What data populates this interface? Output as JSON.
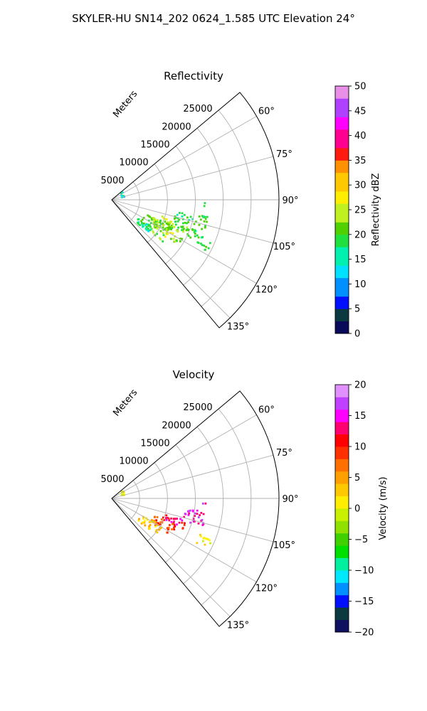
{
  "figure": {
    "suptitle": "SKYLER-HU  SN14_202  0624_1.585 UTC Elevation 24°"
  },
  "chart_data": [
    {
      "type": "polar-sector",
      "title": "Reflectivity",
      "range_label": "Meters",
      "r_ticks": [
        5000,
        10000,
        15000,
        20000,
        25000
      ],
      "r_tick_labels": [
        "5000",
        "10000",
        "15000",
        "20000",
        "25000"
      ],
      "theta_ticks": [
        60,
        75,
        90,
        105,
        120,
        135
      ],
      "theta_tick_labels": [
        "60°",
        "75°",
        "90°",
        "105°",
        "120°",
        "135°"
      ],
      "theta_range": [
        50,
        140
      ],
      "r_max": 30000,
      "grid": true,
      "colorbar": {
        "label": "Reflectivity dBZ",
        "vmin": 0,
        "vmax": 50,
        "ticks": [
          0,
          5,
          10,
          15,
          20,
          25,
          30,
          35,
          40,
          45,
          50
        ],
        "tick_labels": [
          "0",
          "5",
          "10",
          "15",
          "20",
          "25",
          "30",
          "35",
          "40",
          "45",
          "50"
        ]
      },
      "echo_regions": [
        {
          "theta": [
            100,
            116
          ],
          "r": [
            11500,
            17500
          ],
          "value": 19
        },
        {
          "theta": [
            108,
            125
          ],
          "r": [
            9000,
            14500
          ],
          "value": 23
        },
        {
          "theta": [
            113,
            130
          ],
          "r": [
            6500,
            12000
          ],
          "value": 21
        },
        {
          "theta": [
            112,
            119
          ],
          "r": [
            17000,
            19500
          ],
          "value": 18
        },
        {
          "theta": [
            92,
            95
          ],
          "r": [
            16000,
            17000
          ],
          "value": 22
        },
        {
          "theta": [
            124,
            132
          ],
          "r": [
            5500,
            9000
          ],
          "value": 17
        },
        {
          "theta": [
            55,
            78
          ],
          "r": [
            1800,
            2400
          ],
          "value": 14
        }
      ]
    },
    {
      "type": "polar-sector",
      "title": "Velocity",
      "range_label": "Meters",
      "r_ticks": [
        5000,
        10000,
        15000,
        20000,
        25000
      ],
      "r_tick_labels": [
        "5000",
        "10000",
        "15000",
        "20000",
        "25000"
      ],
      "theta_ticks": [
        60,
        75,
        90,
        105,
        120,
        135
      ],
      "theta_tick_labels": [
        "60°",
        "75°",
        "90°",
        "105°",
        "120°",
        "135°"
      ],
      "theta_range": [
        50,
        140
      ],
      "r_max": 30000,
      "grid": true,
      "colorbar": {
        "label": "Velocity (m/s)",
        "vmin": -20,
        "vmax": 20,
        "ticks": [
          -20,
          -15,
          -10,
          -5,
          0,
          5,
          10,
          15,
          20
        ],
        "tick_labels": [
          "−20",
          "−15",
          "−10",
          "−5",
          "0",
          "5",
          "10",
          "15",
          "20"
        ]
      },
      "echo_regions": [
        {
          "theta": [
            98,
            108
          ],
          "r": [
            13000,
            17500
          ],
          "value": 15
        },
        {
          "theta": [
            106,
            114
          ],
          "r": [
            9500,
            14000
          ],
          "value": 12
        },
        {
          "theta": [
            112,
            122
          ],
          "r": [
            8000,
            12500
          ],
          "value": 9
        },
        {
          "theta": [
            118,
            130
          ],
          "r": [
            6000,
            10500
          ],
          "value": 3
        },
        {
          "theta": [
            112,
            119
          ],
          "r": [
            17000,
            19500
          ],
          "value": 1
        },
        {
          "theta": [
            92,
            95
          ],
          "r": [
            16000,
            17000
          ],
          "value": 14
        },
        {
          "theta": [
            55,
            78
          ],
          "r": [
            1800,
            2400
          ],
          "value": 0
        }
      ]
    }
  ]
}
